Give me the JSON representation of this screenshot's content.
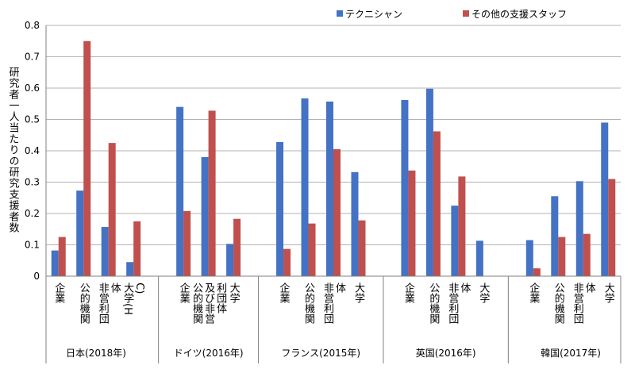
{
  "chart_data": {
    "type": "bar",
    "ylabel": "研究者一人当たりの研究支援者数",
    "ylim": [
      0,
      0.8
    ],
    "yticks": [
      "0",
      "0.1",
      "0.2",
      "0.3",
      "0.4",
      "0.5",
      "0.6",
      "0.7",
      "0.8"
    ],
    "grid": true,
    "legend_position": "top-right",
    "series": [
      {
        "name": "テクニシャン",
        "color": "#4472C4"
      },
      {
        "name": "その他の支援スタッフ",
        "color": "#C0504D"
      }
    ],
    "groups": [
      {
        "name": "日本(2018年)",
        "categories": [
          {
            "label": "企業",
            "values": [
              0.082,
              0.125
            ]
          },
          {
            "label": "公的機関",
            "values": [
              0.273,
              0.75
            ]
          },
          {
            "label": "非営利団体",
            "values": [
              0.157,
              0.425
            ]
          },
          {
            "label": "大学(HC)",
            "values": [
              0.045,
              0.175
            ]
          }
        ]
      },
      {
        "name": "ドイツ(2016年)",
        "categories": [
          {
            "label": "企業",
            "values": [
              0.54,
              0.208
            ]
          },
          {
            "label": "公的機関及び非営利団体",
            "values": [
              0.38,
              0.528
            ]
          },
          {
            "label": "大学",
            "values": [
              0.103,
              0.183
            ]
          }
        ]
      },
      {
        "name": "フランス(2015年)",
        "categories": [
          {
            "label": "企業",
            "values": [
              0.428,
              0.087
            ]
          },
          {
            "label": "公的機関",
            "values": [
              0.567,
              0.168
            ]
          },
          {
            "label": "非営利団体",
            "values": [
              0.557,
              0.405
            ]
          },
          {
            "label": "大学",
            "values": [
              0.332,
              0.178
            ]
          }
        ]
      },
      {
        "name": "英国(2016年)",
        "categories": [
          {
            "label": "企業",
            "values": [
              0.562,
              0.337
            ]
          },
          {
            "label": "公的機関",
            "values": [
              0.598,
              0.462
            ]
          },
          {
            "label": "非営利団体",
            "values": [
              0.225,
              0.318
            ]
          },
          {
            "label": "大学",
            "values": [
              0.113,
              null
            ]
          }
        ]
      },
      {
        "name": "韓国(2017年)",
        "categories": [
          {
            "label": "企業",
            "values": [
              0.115,
              0.025
            ]
          },
          {
            "label": "公的機関",
            "values": [
              0.255,
              0.125
            ]
          },
          {
            "label": "非営利団体",
            "values": [
              0.303,
              0.135
            ]
          },
          {
            "label": "大学",
            "values": [
              0.49,
              0.31
            ]
          }
        ]
      }
    ]
  }
}
